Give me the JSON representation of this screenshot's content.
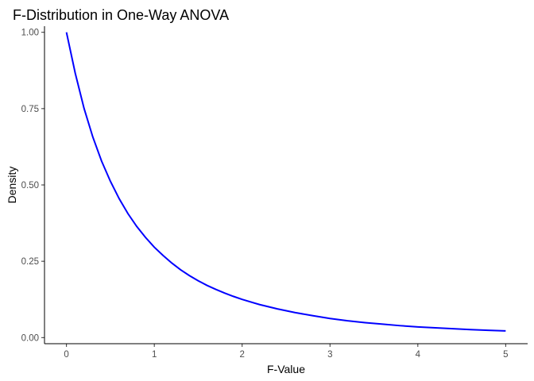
{
  "chart_data": {
    "type": "line",
    "title": "F-Distribution in One-Way ANOVA",
    "xlabel": "F-Value",
    "ylabel": "Density",
    "xlim": [
      -0.25,
      5.25
    ],
    "ylim": [
      -0.02,
      1.02
    ],
    "x_ticks": [
      0,
      1,
      2,
      3,
      4,
      5
    ],
    "x_tick_labels": [
      "0",
      "1",
      "2",
      "3",
      "4",
      "5"
    ],
    "y_ticks": [
      0,
      0.25,
      0.5,
      0.75,
      1
    ],
    "y_tick_labels": [
      "0.00",
      "0.25",
      "0.50",
      "0.75",
      "1.00"
    ],
    "grid": false,
    "legend": "none",
    "series": [
      {
        "color": "#0000ff",
        "x": [
          0,
          0.1,
          0.2,
          0.3,
          0.4,
          0.5,
          0.6,
          0.7,
          0.8,
          0.9,
          1.0,
          1.1,
          1.2,
          1.3,
          1.4,
          1.5,
          1.6,
          1.7,
          1.8,
          1.9,
          2.0,
          2.2,
          2.4,
          2.6,
          2.8,
          3.0,
          3.2,
          3.4,
          3.6,
          3.8,
          4.0,
          4.2,
          4.4,
          4.6,
          4.8,
          5.0
        ],
        "y": [
          1.0,
          0.866,
          0.751,
          0.657,
          0.578,
          0.512,
          0.455,
          0.406,
          0.364,
          0.328,
          0.296,
          0.269,
          0.244,
          0.222,
          0.203,
          0.186,
          0.171,
          0.158,
          0.146,
          0.135,
          0.125,
          0.108,
          0.094,
          0.082,
          0.072,
          0.0625,
          0.055,
          0.049,
          0.044,
          0.039,
          0.035,
          0.032,
          0.029,
          0.026,
          0.024,
          0.022
        ]
      }
    ]
  }
}
